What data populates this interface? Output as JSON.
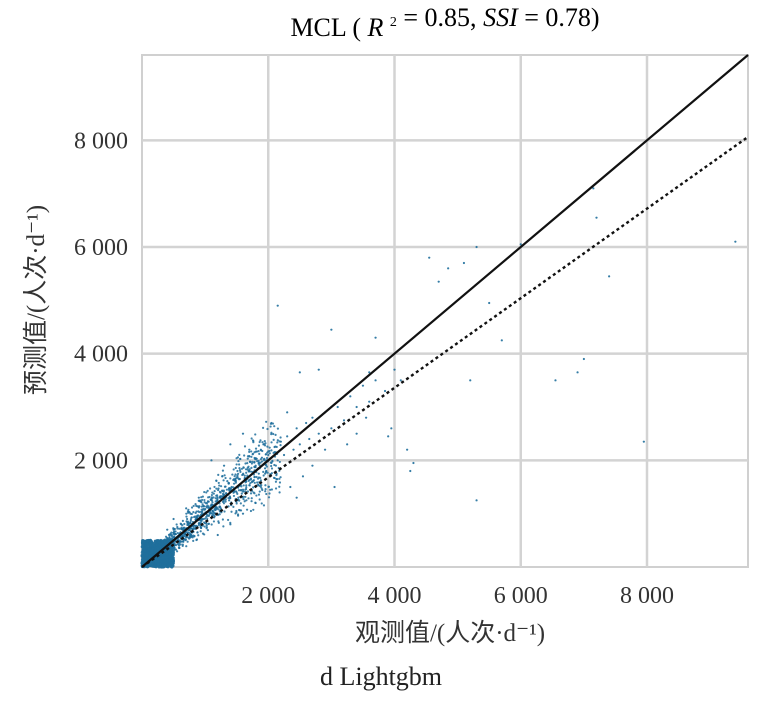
{
  "chart_data": {
    "type": "scatter",
    "title": {
      "model": "MCL",
      "r2_label": "R",
      "r2_sup": "2",
      "r2_value": "= 0.85,",
      "ssi_label": "SSI",
      "ssi_value": "= 0.78)"
    },
    "xlabel": "观测值/(人次·d⁻¹)",
    "ylabel": "预测值/(人次·d⁻¹)",
    "subcaption": "d Lightgbm",
    "xlim": [
      0,
      9600
    ],
    "ylim": [
      0,
      9600
    ],
    "x_ticks": [
      {
        "value": 2000,
        "label": "2 000"
      },
      {
        "value": 4000,
        "label": "4 000"
      },
      {
        "value": 6000,
        "label": "6 000"
      },
      {
        "value": 8000,
        "label": "8 000"
      }
    ],
    "y_ticks": [
      {
        "value": 2000,
        "label": "2 000"
      },
      {
        "value": 4000,
        "label": "4 000"
      },
      {
        "value": 6000,
        "label": "6 000"
      },
      {
        "value": 8000,
        "label": "8 000"
      }
    ],
    "grid": true,
    "reference_line": {
      "slope": 1,
      "intercept": 0,
      "style": "solid",
      "color": "#111111"
    },
    "fit_line": {
      "slope": 0.84,
      "intercept": 0,
      "style": "dotted",
      "color": "#111111"
    },
    "point_color": "#1f6f9c",
    "series": [
      {
        "points": [
          [
            150,
            120
          ],
          [
            220,
            260
          ],
          [
            300,
            210
          ],
          [
            350,
            380
          ],
          [
            420,
            300
          ],
          [
            480,
            520
          ],
          [
            520,
            410
          ],
          [
            600,
            560
          ],
          [
            650,
            480
          ],
          [
            700,
            720
          ],
          [
            760,
            600
          ],
          [
            820,
            780
          ],
          [
            880,
            650
          ],
          [
            950,
            900
          ],
          [
            1000,
            820
          ],
          [
            1080,
            1050
          ],
          [
            1150,
            950
          ],
          [
            1200,
            1200
          ],
          [
            1250,
            1100
          ],
          [
            1300,
            1350
          ],
          [
            1380,
            1250
          ],
          [
            1420,
            1500
          ],
          [
            1500,
            1400
          ],
          [
            1550,
            1650
          ],
          [
            1600,
            1450
          ],
          [
            1700,
            1800
          ],
          [
            1750,
            1600
          ],
          [
            1800,
            1900
          ],
          [
            1850,
            1750
          ],
          [
            1900,
            2050
          ],
          [
            1950,
            1850
          ],
          [
            2000,
            2100
          ],
          [
            2050,
            1950
          ],
          [
            2100,
            2250
          ],
          [
            2150,
            2000
          ],
          [
            2200,
            2350
          ],
          [
            2250,
            2100
          ],
          [
            2300,
            2450
          ],
          [
            2400,
            2200
          ],
          [
            2450,
            2600
          ],
          [
            2500,
            2300
          ],
          [
            2600,
            2700
          ],
          [
            2650,
            2400
          ],
          [
            2700,
            2800
          ],
          [
            2800,
            2500
          ],
          [
            2900,
            2900
          ],
          [
            3000,
            2600
          ],
          [
            3100,
            3000
          ],
          [
            3200,
            2750
          ],
          [
            3300,
            3200
          ],
          [
            3400,
            3000
          ],
          [
            3500,
            3400
          ],
          [
            3600,
            3100
          ],
          [
            3700,
            3500
          ],
          [
            3850,
            3300
          ],
          [
            4000,
            3700
          ],
          [
            4100,
            3500
          ],
          [
            2150,
            4900
          ],
          [
            2500,
            3650
          ],
          [
            2800,
            3700
          ],
          [
            3000,
            4450
          ],
          [
            3600,
            3650
          ],
          [
            3700,
            4300
          ],
          [
            3900,
            2450
          ],
          [
            3950,
            2600
          ],
          [
            4200,
            2200
          ],
          [
            4250,
            1800
          ],
          [
            4300,
            1950
          ],
          [
            4550,
            5800
          ],
          [
            4700,
            5350
          ],
          [
            4850,
            5600
          ],
          [
            5100,
            5700
          ],
          [
            5200,
            3500
          ],
          [
            5300,
            1250
          ],
          [
            5300,
            6000
          ],
          [
            5500,
            4950
          ],
          [
            5700,
            4250
          ],
          [
            6000,
            6050
          ],
          [
            6550,
            3500
          ],
          [
            6900,
            3650
          ],
          [
            7000,
            3900
          ],
          [
            7150,
            7100
          ],
          [
            7200,
            6550
          ],
          [
            7400,
            5450
          ],
          [
            7950,
            2350
          ],
          [
            9400,
            6100
          ],
          [
            1100,
            2000
          ],
          [
            1300,
            1900
          ],
          [
            1400,
            2300
          ],
          [
            1600,
            2500
          ],
          [
            1700,
            2200
          ],
          [
            2050,
            2700
          ],
          [
            2300,
            2900
          ],
          [
            2350,
            1500
          ],
          [
            2450,
            1300
          ],
          [
            2550,
            1700
          ],
          [
            2700,
            1900
          ],
          [
            2900,
            2200
          ],
          [
            3050,
            1500
          ],
          [
            3250,
            2300
          ],
          [
            3400,
            2500
          ],
          [
            3550,
            2800
          ],
          [
            1200,
            600
          ],
          [
            1400,
            800
          ],
          [
            1600,
            1000
          ],
          [
            1800,
            1200
          ],
          [
            900,
            1300
          ],
          [
            700,
            1100
          ],
          [
            500,
            900
          ],
          [
            400,
            700
          ]
        ]
      }
    ]
  }
}
